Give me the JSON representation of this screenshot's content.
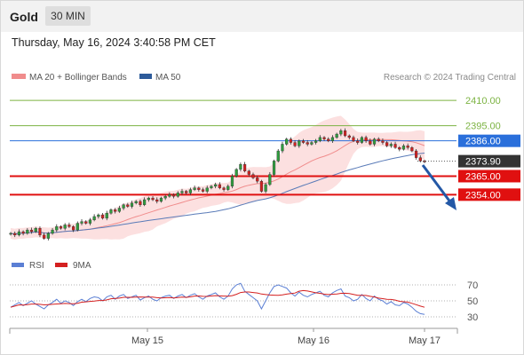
{
  "header": {
    "symbol": "Gold",
    "timeframe": "30 MIN",
    "timestamp": "Thursday, May 16, 2024 3:40:58 PM CET"
  },
  "legend": {
    "ma20_label": "MA 20 + Bollinger Bands",
    "ma50_label": "MA 50",
    "copyright": "Research © 2024 Trading Central",
    "ma20_color": "#f08c8c",
    "ma50_color": "#2d5b9a"
  },
  "price_levels": [
    {
      "label": "2410.00",
      "value": 2410.0,
      "kind": "target",
      "color": "#7cb342"
    },
    {
      "label": "2395.00",
      "value": 2395.0,
      "kind": "target",
      "color": "#7cb342"
    },
    {
      "label": "2386.00",
      "value": 2386.0,
      "kind": "pivot",
      "color": "#2a6fdb"
    },
    {
      "label": "2373.90",
      "value": 2373.9,
      "kind": "last",
      "color": "#333333"
    },
    {
      "label": "2365.00",
      "value": 2365.0,
      "kind": "support",
      "color": "#e01010"
    },
    {
      "label": "2354.00",
      "value": 2354.0,
      "kind": "support",
      "color": "#e01010"
    }
  ],
  "x_axis": {
    "labels": [
      "May 15",
      "May 16",
      "May 17"
    ]
  },
  "rsi_panel": {
    "rsi_label": "RSI",
    "ma_label": "9MA",
    "rsi_color": "#5b7fd4",
    "ma_color": "#d42020",
    "levels": [
      "70",
      "50",
      "30"
    ]
  },
  "chart_data": {
    "type": "candlestick",
    "price_ylim": [
      2322,
      2418
    ],
    "rsi_ylim": [
      20,
      80
    ],
    "closes": [
      2331,
      2330,
      2332,
      2331,
      2333,
      2332,
      2334,
      2330,
      2328,
      2331,
      2333,
      2335,
      2334,
      2336,
      2335,
      2333,
      2337,
      2338,
      2337,
      2339,
      2341,
      2342,
      2340,
      2343,
      2345,
      2344,
      2346,
      2348,
      2347,
      2349,
      2350,
      2348,
      2351,
      2352,
      2351,
      2350,
      2352,
      2353,
      2354,
      2353,
      2355,
      2356,
      2355,
      2357,
      2358,
      2357,
      2356,
      2358,
      2359,
      2360,
      2358,
      2357,
      2359,
      2365,
      2369,
      2372,
      2368,
      2366,
      2364,
      2362,
      2356,
      2360,
      2366,
      2374,
      2380,
      2384,
      2387,
      2385,
      2383,
      2386,
      2385,
      2384,
      2385,
      2386,
      2388,
      2387,
      2386,
      2388,
      2390,
      2392,
      2389,
      2388,
      2386,
      2385,
      2388,
      2386,
      2384,
      2387,
      2386,
      2385,
      2383,
      2384,
      2382,
      2381,
      2383,
      2382,
      2380,
      2376,
      2374,
      2373.9
    ],
    "rsi": [
      42,
      45,
      48,
      44,
      47,
      50,
      46,
      43,
      40,
      45,
      48,
      52,
      47,
      50,
      48,
      44,
      49,
      52,
      49,
      53,
      55,
      54,
      50,
      55,
      57,
      52,
      56,
      58,
      53,
      55,
      57,
      51,
      54,
      56,
      52,
      50,
      54,
      56,
      57,
      53,
      56,
      58,
      54,
      57,
      59,
      55,
      52,
      56,
      58,
      60,
      55,
      52,
      56,
      65,
      70,
      72,
      62,
      58,
      54,
      50,
      40,
      50,
      60,
      68,
      70,
      68,
      66,
      60,
      56,
      61,
      57,
      55,
      58,
      60,
      62,
      57,
      55,
      60,
      63,
      65,
      56,
      54,
      50,
      52,
      58,
      53,
      50,
      56,
      52,
      50,
      46,
      49,
      45,
      44,
      48,
      46,
      42,
      37,
      34,
      33
    ]
  }
}
